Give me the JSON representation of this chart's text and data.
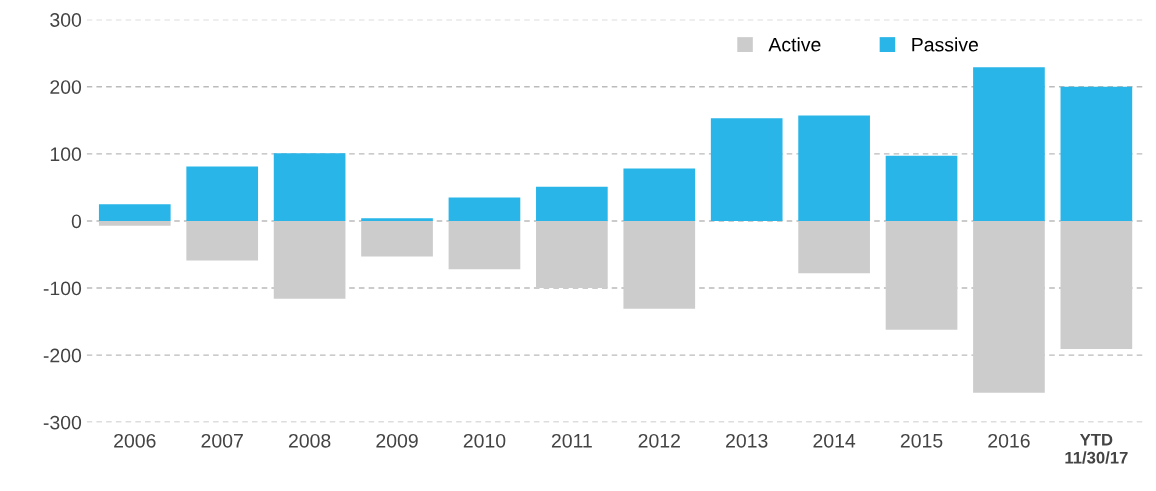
{
  "chart_data": {
    "type": "bar",
    "stacked": true,
    "categories": [
      "2006",
      "2007",
      "2008",
      "2009",
      "2010",
      "2011",
      "2012",
      "2013",
      "2014",
      "2015",
      "2016",
      "YTD\n11/30/17"
    ],
    "series": [
      {
        "name": "Active",
        "color": "#cccccc",
        "values": [
          -7,
          -59,
          -116,
          -53,
          -72,
          -100,
          -131,
          0,
          -78,
          -162,
          -256,
          -191
        ]
      },
      {
        "name": "Passive",
        "color": "#29b5e8",
        "values": [
          25,
          81,
          101,
          4,
          35,
          51,
          78,
          153,
          157,
          97,
          229,
          200
        ]
      }
    ],
    "ylim": [
      -300,
      300
    ],
    "yticks": [
      -300,
      -200,
      -100,
      0,
      100,
      200,
      300
    ],
    "grid": "y",
    "legend": "top right"
  }
}
